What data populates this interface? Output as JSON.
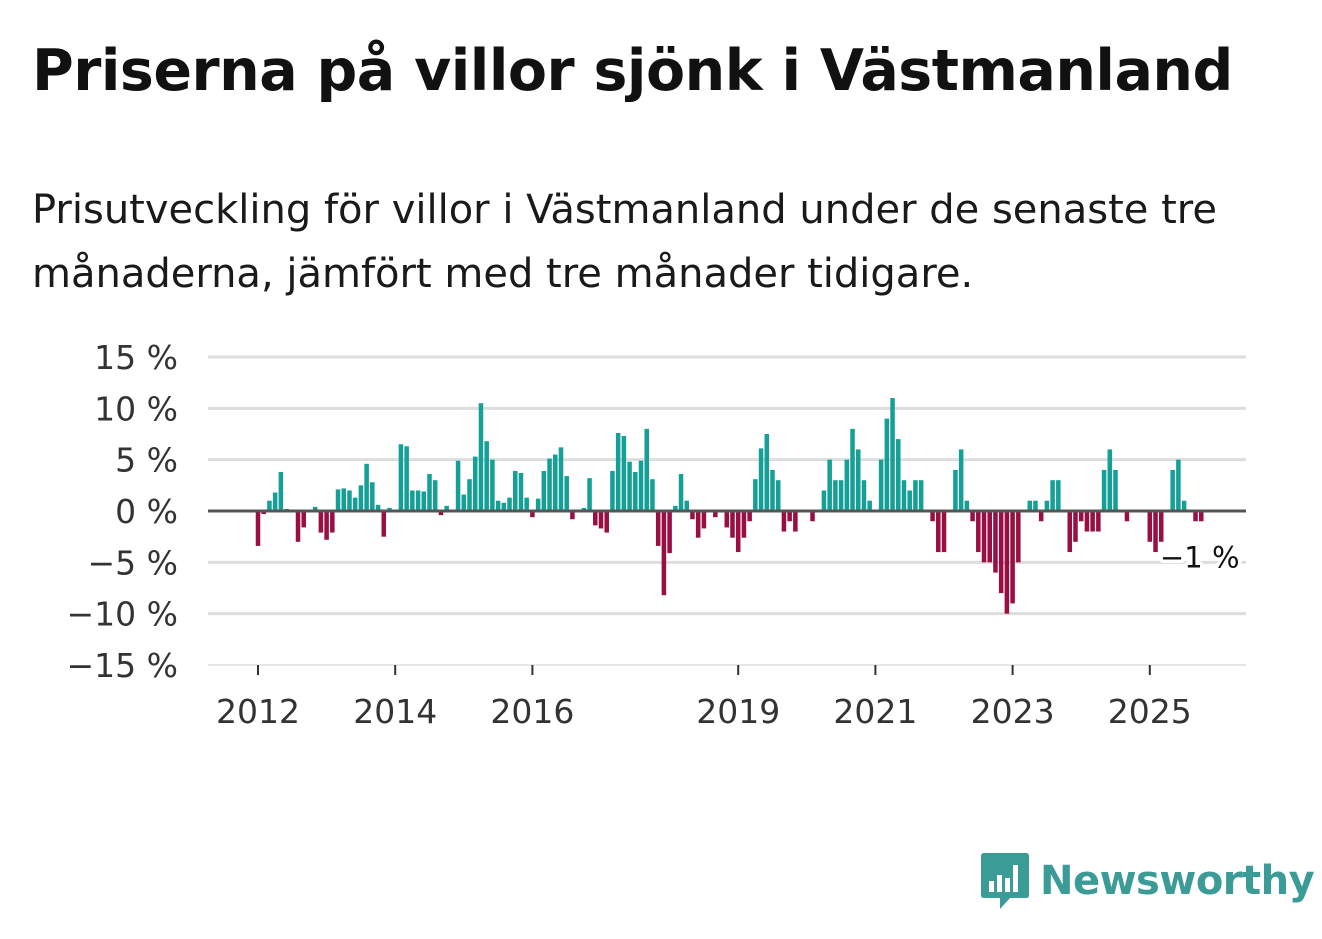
{
  "title": "Priserna på villor sjönk i Västmanland",
  "subtitle": "Prisutveckling för villor i Västmanland under de senaste tre månaderna, jämfört med tre månader tidigare.",
  "brand": "Newsworthy",
  "colors": {
    "positive": "#14a097",
    "negative": "#990f43",
    "zero_line": "#555555",
    "grid": "#dddddd",
    "brand": "#3a9b97"
  },
  "chart_data": {
    "type": "bar",
    "title": "Priserna på villor sjönk i Västmanland",
    "xlabel": "",
    "ylabel": "",
    "ylim": [
      -15,
      15
    ],
    "yticks": [
      15,
      10,
      5,
      0,
      -5,
      -10,
      -15
    ],
    "ytick_labels": [
      "15 %",
      "10 %",
      "5 %",
      "0 %",
      "−5 %",
      "−10 %",
      "−15 %"
    ],
    "xticks": [
      {
        "year": 2012,
        "label": "2012"
      },
      {
        "year": 2014,
        "label": "2014"
      },
      {
        "year": 2016,
        "label": "2016"
      },
      {
        "year": 2019,
        "label": "2019"
      },
      {
        "year": 2021,
        "label": "2021"
      },
      {
        "year": 2023,
        "label": "2023"
      },
      {
        "year": 2025,
        "label": "2025"
      }
    ],
    "start": {
      "year": 2011,
      "month": 4
    },
    "values": [
      0,
      0,
      0,
      0,
      0,
      0,
      0,
      0,
      0,
      -3.4,
      -0.3,
      1.0,
      1.8,
      3.8,
      0.2,
      0,
      -3.0,
      -1.6,
      0,
      0.4,
      -2.1,
      -2.8,
      -2.1,
      2.1,
      2.2,
      2.0,
      1.3,
      2.5,
      4.6,
      2.8,
      0.6,
      -2.5,
      0.3,
      0,
      6.5,
      6.3,
      2.0,
      2.0,
      1.9,
      3.6,
      3.0,
      -0.4,
      0.5,
      0,
      4.9,
      1.6,
      3.1,
      5.3,
      10.5,
      6.8,
      5.0,
      1.0,
      0.8,
      1.3,
      3.9,
      3.7,
      1.3,
      -0.6,
      1.2,
      3.9,
      5.1,
      5.5,
      6.2,
      3.4,
      -0.8,
      0,
      0.3,
      3.2,
      -1.4,
      -1.7,
      -2.1,
      3.9,
      7.6,
      7.3,
      4.8,
      3.8,
      4.9,
      8.0,
      3.1,
      -3.4,
      -8.2,
      -4.1,
      0.5,
      3.6,
      1.0,
      -0.8,
      -2.6,
      -1.7,
      0,
      -0.6,
      0,
      -1.6,
      -2.6,
      -4.0,
      -2.6,
      -1.0,
      3.1,
      6.1,
      7.5,
      4.0,
      3.0,
      -2.0,
      -1.0,
      -2.0,
      0,
      0,
      -1.0,
      0,
      2.0,
      5.0,
      3.0,
      3.0,
      5.0,
      8.0,
      6.0,
      3.0,
      1.0,
      0,
      5.0,
      9.0,
      11.0,
      7.0,
      3.0,
      2.0,
      3.0,
      3.0,
      0,
      -1.0,
      -4.0,
      -4.0,
      0,
      4.0,
      6.0,
      1.0,
      -1.0,
      -4.0,
      -5.0,
      -5.0,
      -6.0,
      -8.0,
      -10.0,
      -9.0,
      -5.0,
      0,
      1.0,
      1.0,
      -1.0,
      1.0,
      3.0,
      3.0,
      0,
      -4.0,
      -3.0,
      -1.0,
      -2.0,
      -2.0,
      -2.0,
      4.0,
      6.0,
      4.0,
      0,
      -1.0,
      0,
      0,
      0,
      -3.0,
      -4.0,
      -3.0,
      0,
      4.0,
      5.0,
      1.0,
      0,
      -1.0,
      -1.0
    ],
    "annotation": {
      "label": "−1 %",
      "value": -1
    }
  }
}
